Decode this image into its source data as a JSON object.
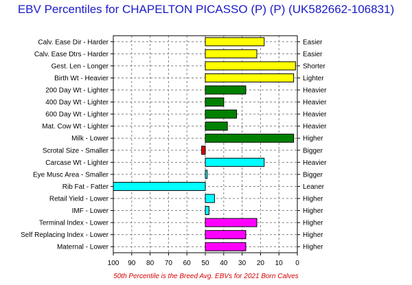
{
  "chart_data": {
    "type": "bar",
    "orientation": "horizontal",
    "title": "EBV Percentiles for CHAPELTON PICASSO (P) (P) (UK582662-106831)",
    "footnote": "50th Percentile is the Breed Avg. EBVs for 2021 Born Calves",
    "xlim": [
      100,
      0
    ],
    "xticks": [
      100,
      90,
      80,
      70,
      60,
      50,
      40,
      30,
      20,
      10,
      0
    ],
    "baseline": 50,
    "grid": true,
    "categories": [
      {
        "label": "Calv. Ease Dir - Harder",
        "right": "Easier",
        "value": 18,
        "color": "#ffff00"
      },
      {
        "label": "Calv. Ease Dtrs - Harder",
        "right": "Easier",
        "value": 22,
        "color": "#ffff00"
      },
      {
        "label": "Gest. Len - Longer",
        "right": "Shorter",
        "value": 1,
        "color": "#ffff00"
      },
      {
        "label": "Birth Wt - Heavier",
        "right": "Lighter",
        "value": 2,
        "color": "#ffff00"
      },
      {
        "label": "200 Day Wt - Lighter",
        "right": "Heavier",
        "value": 28,
        "color": "#008000"
      },
      {
        "label": "400 Day Wt - Lighter",
        "right": "Heavier",
        "value": 40,
        "color": "#008000"
      },
      {
        "label": "600 Day Wt - Lighter",
        "right": "Heavier",
        "value": 33,
        "color": "#008000"
      },
      {
        "label": "Mat. Cow Wt - Lighter",
        "right": "Heavier",
        "value": 38,
        "color": "#008000"
      },
      {
        "label": "Milk - Lower",
        "right": "Higher",
        "value": 2,
        "color": "#008000"
      },
      {
        "label": "Scrotal Size - Smaller",
        "right": "Bigger",
        "value": 52,
        "color": "#e00000"
      },
      {
        "label": "Carcase Wt - Lighter",
        "right": "Heavier",
        "value": 18,
        "color": "#00ffff"
      },
      {
        "label": "Eye Musc Area - Smaller",
        "right": "Bigger",
        "value": 49,
        "color": "#00ffff"
      },
      {
        "label": "Rib Fat - Fatter",
        "right": "Leaner",
        "value": 100,
        "color": "#00ffff"
      },
      {
        "label": "Retail Yield - Lower",
        "right": "Higher",
        "value": 45,
        "color": "#00ffff"
      },
      {
        "label": "IMF - Lower",
        "right": "Higher",
        "value": 48,
        "color": "#00ffff"
      },
      {
        "label": "Terminal Index - Lower",
        "right": "Higher",
        "value": 22,
        "color": "#ff00ff"
      },
      {
        "label": "Self Replacing Index - Lower",
        "right": "Higher",
        "value": 28,
        "color": "#ff00ff"
      },
      {
        "label": "Maternal - Lower",
        "right": "Higher",
        "value": 28,
        "color": "#ff00ff"
      }
    ]
  }
}
